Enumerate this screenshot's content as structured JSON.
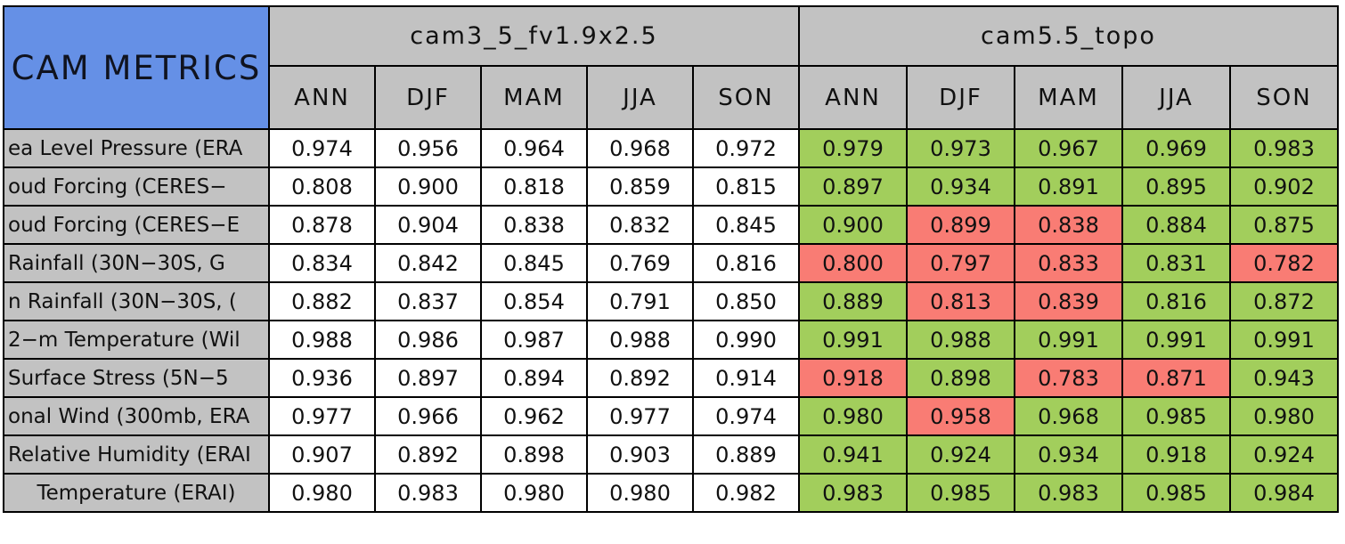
{
  "colors": {
    "title_blue": "#6590E6",
    "header_gray": "#C2C2C2",
    "better_green": "#A2CE5C",
    "worse_red": "#F97C74",
    "neutral_white": "#FFFFFF",
    "grid_black": "#000000"
  },
  "chart_data": {
    "type": "table",
    "title": "CAM METRICS",
    "groups": [
      {
        "name": "cam3_5_fv1.9x2.5",
        "seasons": [
          "ANN",
          "DJF",
          "MAM",
          "JJA",
          "SON"
        ]
      },
      {
        "name": "cam5.5_topo",
        "seasons": [
          "ANN",
          "DJF",
          "MAM",
          "JJA",
          "SON"
        ]
      }
    ],
    "cell_color_legend": {
      "better": "#A2CE5C",
      "worse": "#F97C74",
      "neutral": "#FFFFFF"
    },
    "rows": [
      {
        "label": "ea Level Pressure (ERA",
        "cam3_5_fv19x25": [
          "0.974",
          "0.956",
          "0.964",
          "0.968",
          "0.972"
        ],
        "cam5_5_topo": [
          {
            "v": "0.979",
            "flag": "better"
          },
          {
            "v": "0.973",
            "flag": "better"
          },
          {
            "v": "0.967",
            "flag": "better"
          },
          {
            "v": "0.969",
            "flag": "better"
          },
          {
            "v": "0.983",
            "flag": "better"
          }
        ]
      },
      {
        "label": "oud Forcing (CERES−",
        "cam3_5_fv19x25": [
          "0.808",
          "0.900",
          "0.818",
          "0.859",
          "0.815"
        ],
        "cam5_5_topo": [
          {
            "v": "0.897",
            "flag": "better"
          },
          {
            "v": "0.934",
            "flag": "better"
          },
          {
            "v": "0.891",
            "flag": "better"
          },
          {
            "v": "0.895",
            "flag": "better"
          },
          {
            "v": "0.902",
            "flag": "better"
          }
        ]
      },
      {
        "label": "oud Forcing (CERES−E",
        "cam3_5_fv19x25": [
          "0.878",
          "0.904",
          "0.838",
          "0.832",
          "0.845"
        ],
        "cam5_5_topo": [
          {
            "v": "0.900",
            "flag": "better"
          },
          {
            "v": "0.899",
            "flag": "worse"
          },
          {
            "v": "0.838",
            "flag": "worse"
          },
          {
            "v": "0.884",
            "flag": "better"
          },
          {
            "v": "0.875",
            "flag": "better"
          }
        ]
      },
      {
        "label": "Rainfall (30N−30S, G",
        "cam3_5_fv19x25": [
          "0.834",
          "0.842",
          "0.845",
          "0.769",
          "0.816"
        ],
        "cam5_5_topo": [
          {
            "v": "0.800",
            "flag": "worse"
          },
          {
            "v": "0.797",
            "flag": "worse"
          },
          {
            "v": "0.833",
            "flag": "worse"
          },
          {
            "v": "0.831",
            "flag": "better"
          },
          {
            "v": "0.782",
            "flag": "worse"
          }
        ]
      },
      {
        "label": "n Rainfall (30N−30S, (",
        "cam3_5_fv19x25": [
          "0.882",
          "0.837",
          "0.854",
          "0.791",
          "0.850"
        ],
        "cam5_5_topo": [
          {
            "v": "0.889",
            "flag": "better"
          },
          {
            "v": "0.813",
            "flag": "worse"
          },
          {
            "v": "0.839",
            "flag": "worse"
          },
          {
            "v": "0.816",
            "flag": "better"
          },
          {
            "v": "0.872",
            "flag": "better"
          }
        ]
      },
      {
        "label": "2−m Temperature (Wil",
        "cam3_5_fv19x25": [
          "0.988",
          "0.986",
          "0.987",
          "0.988",
          "0.990"
        ],
        "cam5_5_topo": [
          {
            "v": "0.991",
            "flag": "better"
          },
          {
            "v": "0.988",
            "flag": "better"
          },
          {
            "v": "0.991",
            "flag": "better"
          },
          {
            "v": "0.991",
            "flag": "better"
          },
          {
            "v": "0.991",
            "flag": "better"
          }
        ]
      },
      {
        "label": "Surface Stress (5N−5",
        "cam3_5_fv19x25": [
          "0.936",
          "0.897",
          "0.894",
          "0.892",
          "0.914"
        ],
        "cam5_5_topo": [
          {
            "v": "0.918",
            "flag": "worse"
          },
          {
            "v": "0.898",
            "flag": "better"
          },
          {
            "v": "0.783",
            "flag": "worse"
          },
          {
            "v": "0.871",
            "flag": "worse"
          },
          {
            "v": "0.943",
            "flag": "better"
          }
        ]
      },
      {
        "label": "onal Wind (300mb, ERA",
        "cam3_5_fv19x25": [
          "0.977",
          "0.966",
          "0.962",
          "0.977",
          "0.974"
        ],
        "cam5_5_topo": [
          {
            "v": "0.980",
            "flag": "better"
          },
          {
            "v": "0.958",
            "flag": "worse"
          },
          {
            "v": "0.968",
            "flag": "better"
          },
          {
            "v": "0.985",
            "flag": "better"
          },
          {
            "v": "0.980",
            "flag": "better"
          }
        ]
      },
      {
        "label": "Relative Humidity (ERAI",
        "cam3_5_fv19x25": [
          "0.907",
          "0.892",
          "0.898",
          "0.903",
          "0.889"
        ],
        "cam5_5_topo": [
          {
            "v": "0.941",
            "flag": "better"
          },
          {
            "v": "0.924",
            "flag": "better"
          },
          {
            "v": "0.934",
            "flag": "better"
          },
          {
            "v": "0.918",
            "flag": "better"
          },
          {
            "v": "0.924",
            "flag": "better"
          }
        ]
      },
      {
        "label": "Temperature (ERAI)",
        "cam3_5_fv19x25": [
          "0.980",
          "0.983",
          "0.980",
          "0.980",
          "0.982"
        ],
        "cam5_5_topo": [
          {
            "v": "0.983",
            "flag": "better"
          },
          {
            "v": "0.985",
            "flag": "better"
          },
          {
            "v": "0.983",
            "flag": "better"
          },
          {
            "v": "0.985",
            "flag": "better"
          },
          {
            "v": "0.984",
            "flag": "better"
          }
        ]
      }
    ]
  }
}
